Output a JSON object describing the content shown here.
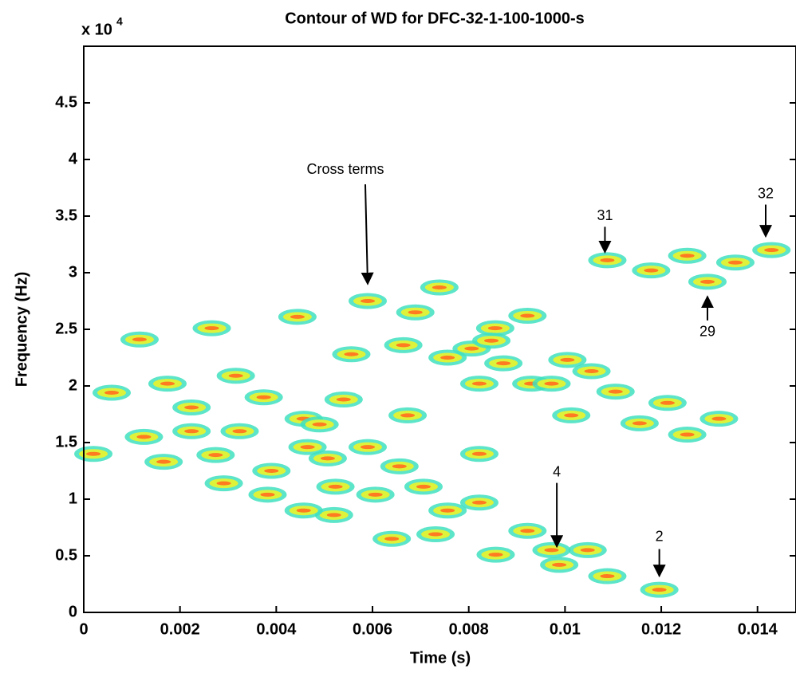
{
  "chart_data": {
    "type": "contour",
    "title": "Contour of WD for DFC-32-1-100-1000-s",
    "xlabel": "Time (s)",
    "ylabel": "Frequency (Hz)",
    "y_multiplier": {
      "base": "x 10",
      "exponent": "4"
    },
    "xlim": [
      0,
      0.0148
    ],
    "ylim": [
      0,
      5
    ],
    "xticks": [
      0,
      0.002,
      0.004,
      0.006,
      0.008,
      0.01,
      0.012,
      0.014
    ],
    "yticks": [
      0,
      0.5,
      1,
      1.5,
      2,
      2.5,
      3,
      3.5,
      4,
      4.5
    ],
    "colors": [
      "#3fe0c0",
      "#dff23a",
      "#ff7a20"
    ],
    "x": [
      0.00058,
      0.00125,
      0.00166,
      0.00116,
      0.00174,
      0.00224,
      0.00224,
      0.00266,
      0.00274,
      0.00291,
      0.00316,
      0.00324,
      0.00374,
      0.0039,
      0.00382,
      0.00444,
      0.00457,
      0.0049,
      0.00507,
      0.00465,
      0.00523,
      0.00556,
      0.0054,
      0.0059,
      0.00606,
      0.0059,
      0.00656,
      0.00673,
      0.00664,
      0.00689,
      0.00739,
      0.00756,
      0.00806,
      0.00855,
      0.00822,
      0.00872,
      0.00922,
      0.00847,
      0.0093,
      0.00972,
      0.01005,
      0.01055,
      0.01013,
      0.01105,
      0.01155,
      0.01213,
      0.01254,
      0.0132,
      0.01088,
      0.01179,
      0.01254,
      0.01296,
      0.01354,
      0.01429,
      0.00706,
      0.00756,
      0.00822,
      0.00731,
      0.00856,
      0.00922,
      0.00972,
      0.00988,
      0.01047,
      0.01088,
      0.01196,
      0.0052,
      0.0064,
      0.00457,
      0.00822,
      0.0002
    ],
    "y": [
      1.94,
      1.55,
      1.33,
      2.41,
      2.02,
      1.81,
      1.6,
      2.51,
      1.39,
      1.14,
      2.09,
      1.6,
      1.9,
      1.25,
      1.04,
      2.61,
      1.71,
      1.66,
      1.36,
      1.46,
      1.11,
      2.28,
      1.88,
      2.75,
      1.04,
      1.46,
      1.29,
      1.74,
      2.36,
      2.65,
      2.87,
      2.25,
      2.33,
      2.51,
      2.02,
      2.2,
      2.62,
      2.4,
      2.02,
      2.02,
      2.23,
      2.13,
      1.74,
      1.95,
      1.67,
      1.85,
      1.57,
      1.71,
      3.11,
      3.02,
      3.15,
      2.92,
      3.09,
      3.2,
      1.11,
      0.9,
      0.97,
      0.69,
      0.51,
      0.72,
      0.55,
      0.42,
      0.55,
      0.32,
      0.2,
      0.86,
      0.65,
      0.9,
      1.4,
      1.4
    ],
    "annotations": [
      {
        "text": "Cross terms",
        "x": 0.0059,
        "y": 2.9
      },
      {
        "text": "31",
        "x": 0.01083,
        "y": 3.18
      },
      {
        "text": "32",
        "x": 0.01417,
        "y": 3.32
      },
      {
        "text": "29",
        "x": 0.01296,
        "y": 2.79
      },
      {
        "text": "4",
        "x": 0.00983,
        "y": 0.58
      },
      {
        "text": "2",
        "x": 0.01196,
        "y": 0.32
      }
    ]
  }
}
